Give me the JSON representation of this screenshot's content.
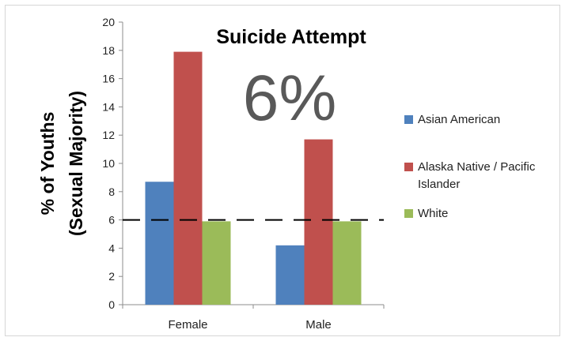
{
  "chart_data": {
    "type": "bar",
    "title": "Suicide Attempt",
    "annotation": "6%",
    "ylabel_lines": [
      "% of Youths",
      "(Sexual Majority)"
    ],
    "xlabel": "",
    "categories": [
      "Female",
      "Male"
    ],
    "series": [
      {
        "name": "Asian American",
        "color": "#4f81bd",
        "values": [
          8.7,
          4.2
        ]
      },
      {
        "name": "Alaska Native / Pacific Islander",
        "name_lines": [
          "Alaska Native / Pacific",
          "Islander"
        ],
        "color": "#c0504d",
        "values": [
          17.9,
          11.7
        ]
      },
      {
        "name": "White",
        "color": "#9bbb59",
        "values": [
          5.9,
          5.9
        ]
      }
    ],
    "ylim": [
      0,
      20
    ],
    "yticks": [
      0,
      2,
      4,
      6,
      8,
      10,
      12,
      14,
      16,
      18,
      20
    ],
    "reference_line": {
      "value": 6,
      "style": "dashed"
    },
    "grid": false,
    "legend_position": "right"
  }
}
